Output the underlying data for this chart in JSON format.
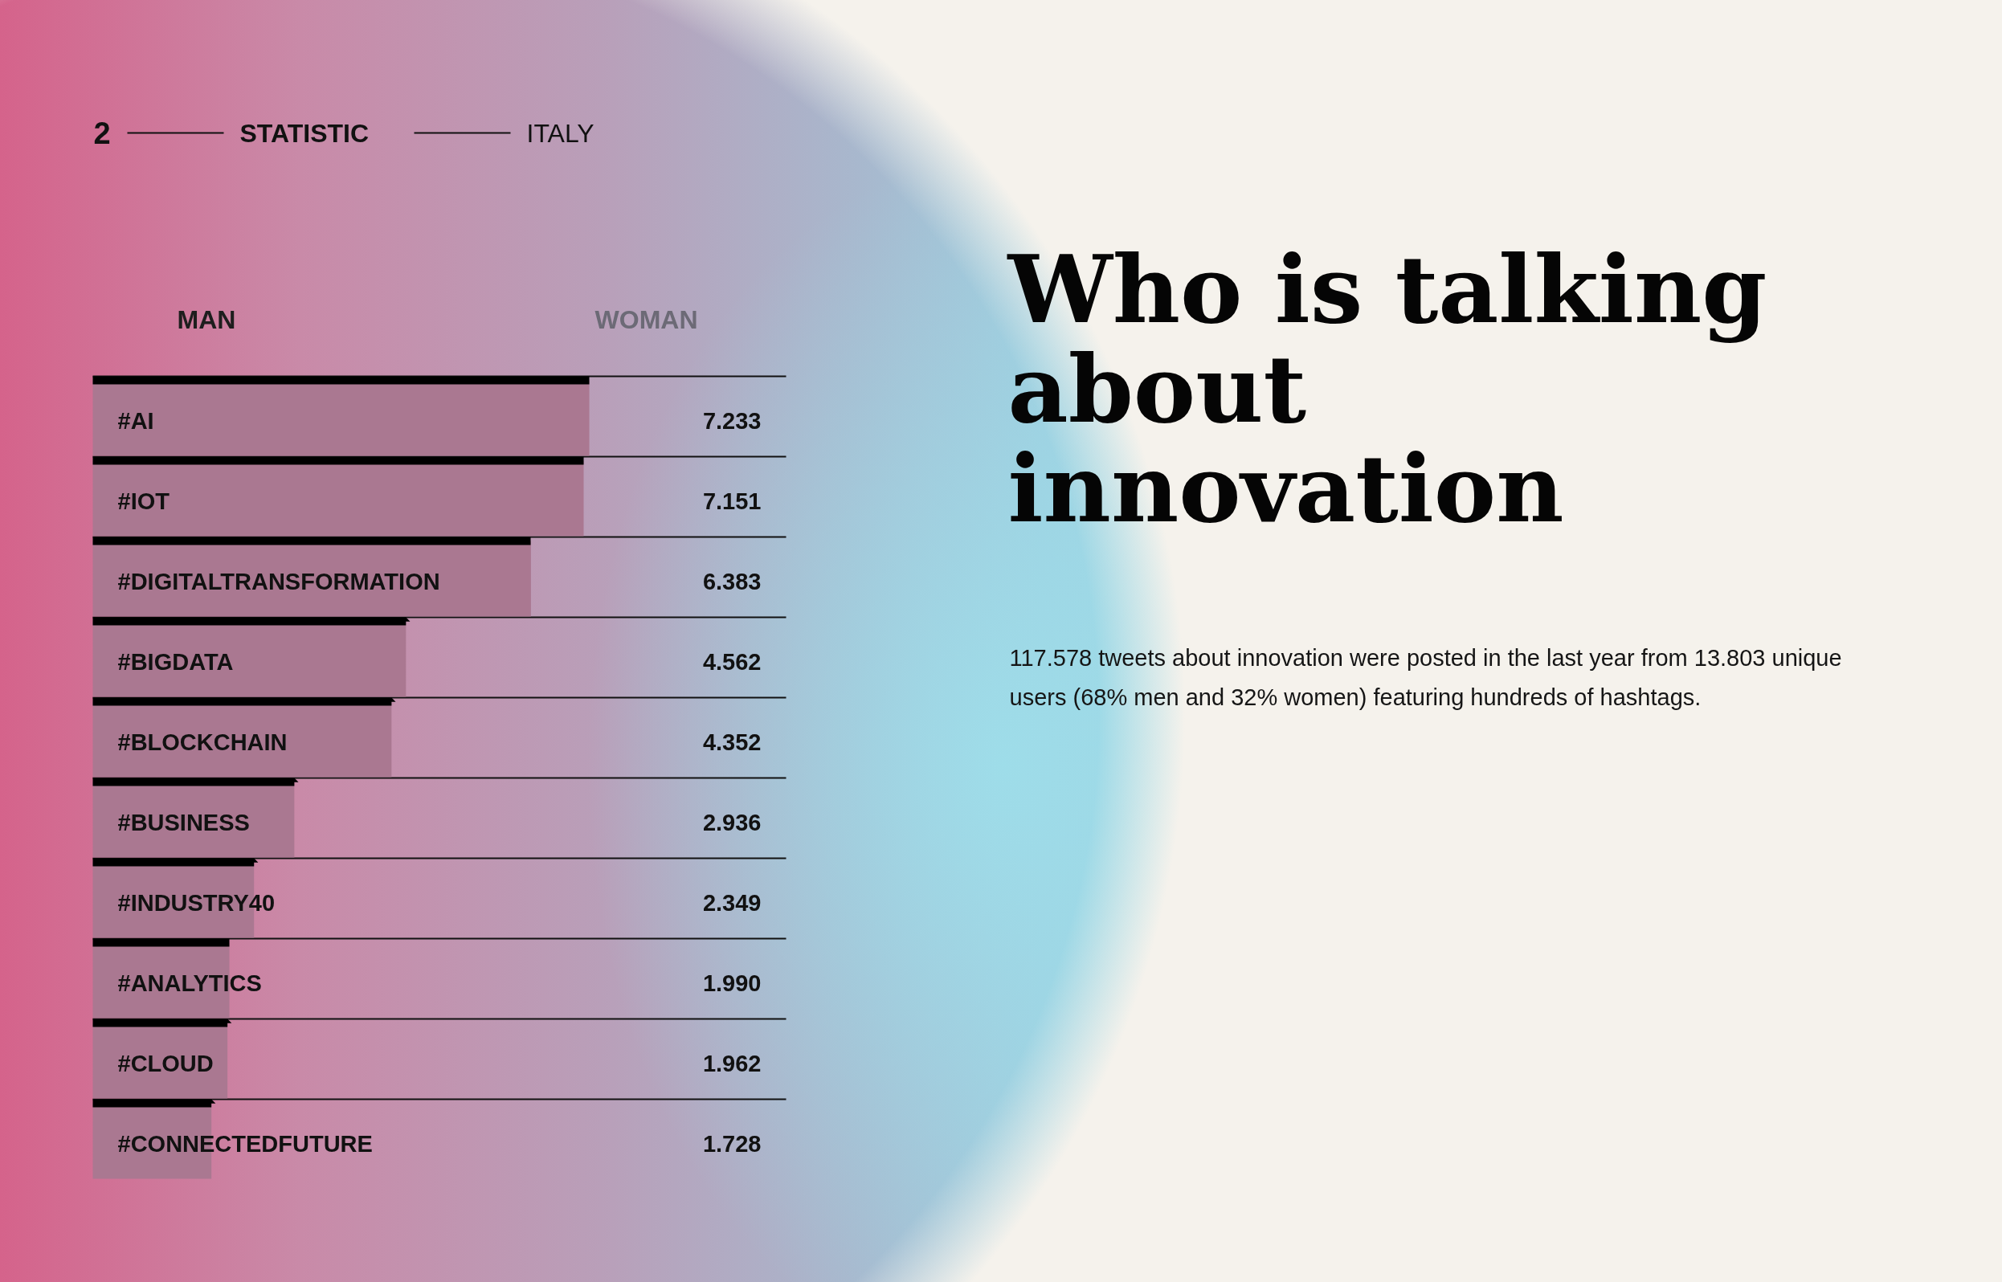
{
  "chart_data": {
    "type": "bar",
    "orientation": "horizontal",
    "title": "Who is talking about innovation",
    "subtitle": "117.578 tweets about innovation were posted in the last year from 13.803 unique users (68% men and 32% women) featuring hundreds of hashtags.",
    "annotations": [
      "2",
      "STATISTIC",
      "ITALY",
      "MAN",
      "WOMAN"
    ],
    "categories": [
      "#AI",
      "#IOT",
      "#DIGITALTRANSFORMATION",
      "#BIGDATA",
      "#BLOCKCHAIN",
      "#BUSINESS",
      "#INDUSTRY40",
      "#ANALYTICS",
      "#CLOUD",
      "#CONNECTEDFUTURE"
    ],
    "values": [
      7233,
      7151,
      6383,
      4562,
      4352,
      2936,
      2349,
      1990,
      1962,
      1728
    ],
    "value_labels": [
      "7.233",
      "7.151",
      "6.383",
      "4.562",
      "4.352",
      "2.936",
      "2.349",
      "1.990",
      "1.962",
      "1.728"
    ],
    "color": "#aa7891",
    "xlim": [
      0,
      10100
    ],
    "grid": "y",
    "tick_labels": "y"
  }
}
